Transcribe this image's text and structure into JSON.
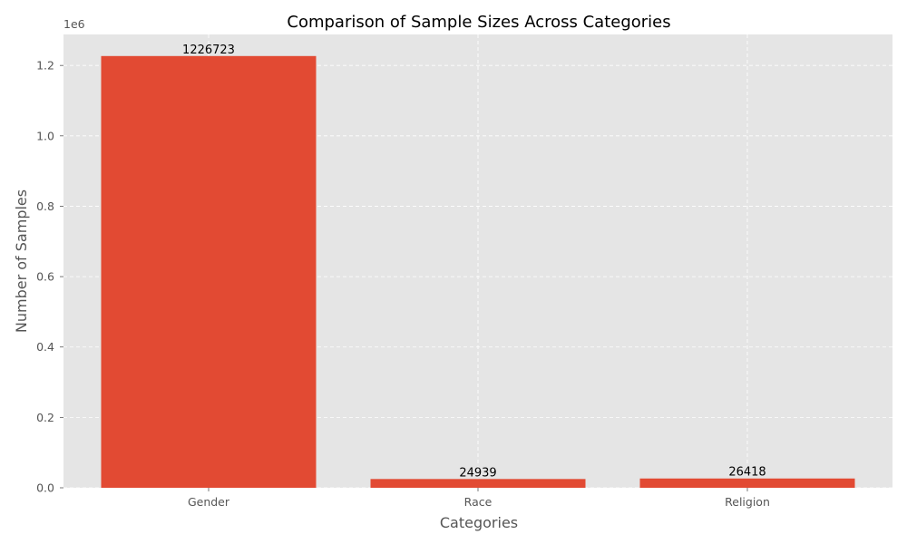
{
  "chart_data": {
    "type": "bar",
    "title": "Comparison of Sample Sizes Across Categories",
    "xlabel": "Categories",
    "ylabel": "Number of Samples",
    "categories": [
      "Gender",
      "Race",
      "Religion"
    ],
    "values": [
      1226723,
      24939,
      26418
    ],
    "data_labels": [
      "1226723",
      "24939",
      "26418"
    ],
    "y_offset_label": "1e6",
    "yticks": [
      0,
      200000,
      400000,
      600000,
      800000,
      1000000,
      1200000
    ],
    "ytick_labels": [
      "0.0",
      "0.2",
      "0.4",
      "0.6",
      "0.8",
      "1.0",
      "1.2"
    ],
    "ylim": [
      0,
      1288059
    ],
    "grid": true,
    "bar_color": "#E24A33",
    "background_color": "#E5E5E5",
    "grid_color": "#FFFFFF"
  }
}
